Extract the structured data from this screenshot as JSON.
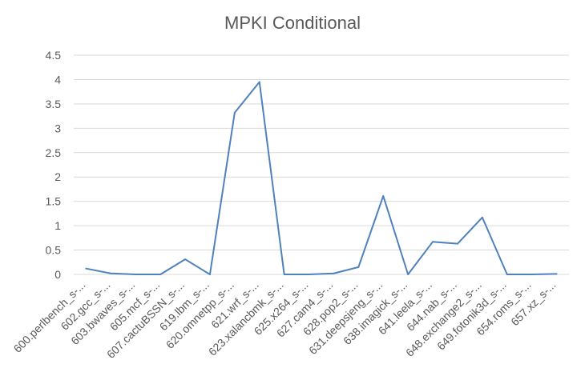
{
  "chart_data": {
    "type": "line",
    "title": "MPKI Conditional",
    "xlabel": "",
    "ylabel": "",
    "ylim": [
      0,
      4.5
    ],
    "yticks": [
      "0",
      "0.5",
      "1",
      "1.5",
      "2",
      "2.5",
      "3",
      "3.5",
      "4",
      "4.5"
    ],
    "grid": true,
    "legend": "none",
    "categories": [
      "600.perlbench_s-...",
      "602.gcc_s-...",
      "603.bwaves_s-...",
      "605.mcf_s-...",
      "607.cactuBSSN_s-...",
      "619.lbm_s-...",
      "620.omnetpp_s-...",
      "621.wrf_s-...",
      "623.xalancbmk_s-...",
      "625.x264_s-...",
      "627.cam4_s-...",
      "628.pop2_s-...",
      "631.deepsjeng_s-...",
      "638.imagick_s-...",
      "641.leela_s-...",
      "644.nab_s-...",
      "648.exchange2_s-...",
      "649.fotonik3d_s-...",
      "654.roms_s-...",
      "657.xz_s-..."
    ],
    "series": [
      {
        "values": [
          0.12,
          0.02,
          0.0,
          0.0,
          0.31,
          0.0,
          3.32,
          3.95,
          0.0,
          0.0,
          0.02,
          0.15,
          1.61,
          0.0,
          0.67,
          0.63,
          1.17,
          0.0,
          0.0,
          0.01
        ],
        "color": "#4f81bd"
      }
    ],
    "colors": {
      "grid": "#d9d9d9",
      "text": "#595959",
      "axis": "#d9d9d9"
    }
  }
}
